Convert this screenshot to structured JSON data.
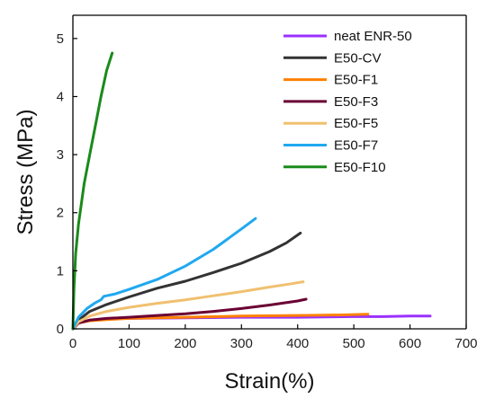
{
  "chart_data": {
    "type": "line",
    "xlabel": "Strain(%)",
    "ylabel": "Stress (MPa)",
    "xlim": [
      0,
      700
    ],
    "ylim": [
      0,
      5.4
    ],
    "xticks": [
      "0",
      "100",
      "200",
      "300",
      "400",
      "500",
      "600",
      "700"
    ],
    "yticks": [
      "0",
      "1",
      "2",
      "3",
      "4",
      "5"
    ],
    "grid": false,
    "legend_position": "top-right",
    "series": [
      {
        "name": "neat ENR-50",
        "color": "#9b30ff",
        "x": [
          0,
          10,
          30,
          60,
          100,
          200,
          300,
          400,
          500,
          550,
          600,
          636
        ],
        "y": [
          0,
          0.1,
          0.15,
          0.17,
          0.18,
          0.19,
          0.2,
          0.2,
          0.21,
          0.21,
          0.22,
          0.22
        ]
      },
      {
        "name": "E50-CV",
        "color": "#333333",
        "x": [
          0,
          10,
          30,
          60,
          100,
          150,
          200,
          250,
          300,
          350,
          380,
          405
        ],
        "y": [
          0,
          0.15,
          0.3,
          0.42,
          0.55,
          0.7,
          0.82,
          0.97,
          1.13,
          1.33,
          1.48,
          1.65
        ]
      },
      {
        "name": "E50-F1",
        "color": "#ff8000",
        "x": [
          0,
          10,
          30,
          60,
          100,
          200,
          300,
          400,
          480,
          525
        ],
        "y": [
          0,
          0.1,
          0.14,
          0.16,
          0.18,
          0.2,
          0.22,
          0.23,
          0.24,
          0.25
        ]
      },
      {
        "name": "E50-F3",
        "color": "#6a0033",
        "x": [
          0,
          10,
          30,
          60,
          100,
          150,
          200,
          250,
          300,
          350,
          400,
          415
        ],
        "y": [
          0,
          0.1,
          0.15,
          0.18,
          0.2,
          0.23,
          0.26,
          0.3,
          0.35,
          0.41,
          0.48,
          0.51
        ]
      },
      {
        "name": "E50-F5",
        "color": "#f0c070",
        "x": [
          0,
          10,
          30,
          60,
          100,
          150,
          200,
          250,
          300,
          350,
          385,
          410
        ],
        "y": [
          0,
          0.12,
          0.22,
          0.3,
          0.37,
          0.44,
          0.5,
          0.57,
          0.64,
          0.72,
          0.77,
          0.81
        ]
      },
      {
        "name": "E50-F7",
        "color": "#20a8f0",
        "x": [
          0,
          10,
          25,
          40,
          50,
          55,
          75,
          100,
          150,
          200,
          250,
          300,
          325
        ],
        "y": [
          0,
          0.2,
          0.35,
          0.45,
          0.5,
          0.56,
          0.6,
          0.68,
          0.85,
          1.08,
          1.37,
          1.72,
          1.9
        ]
      },
      {
        "name": "E50-F10",
        "color": "#1a8a1a",
        "x": [
          0,
          2,
          5,
          10,
          20,
          30,
          40,
          50,
          60,
          70
        ],
        "y": [
          0,
          0.7,
          1.3,
          1.8,
          2.5,
          3.0,
          3.5,
          4.0,
          4.45,
          4.75
        ]
      }
    ]
  }
}
